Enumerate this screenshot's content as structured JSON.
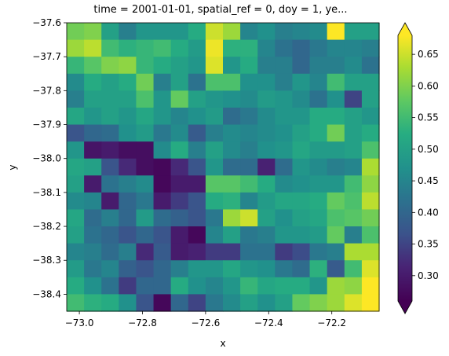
{
  "chart_data": {
    "type": "heatmap",
    "title": "time = 2001-01-01, spatial_ref = 0, doy = 1, ye...",
    "xlabel": "x",
    "ylabel": "y",
    "xlim": [
      -73.04,
      -72.05
    ],
    "ylim": [
      -38.45,
      -37.6
    ],
    "x_ticks": [
      -73.0,
      -72.8,
      -72.6,
      -72.4,
      -72.2
    ],
    "x_tick_labels": [
      "−73.0",
      "−72.8",
      "−72.6",
      "−72.4",
      "−72.2"
    ],
    "y_ticks": [
      -37.6,
      -37.7,
      -37.8,
      -37.9,
      -38.0,
      -38.1,
      -38.2,
      -38.3,
      -38.4
    ],
    "y_tick_labels": [
      "−37.6",
      "−37.7",
      "−37.8",
      "−37.9",
      "−38.0",
      "−38.1",
      "−38.2",
      "−38.3",
      "−38.4"
    ],
    "colormap": "viridis",
    "colorbar": {
      "vmin": 0.26,
      "vmax": 0.68,
      "extend": "both",
      "ticks": [
        0.3,
        0.35,
        0.4,
        0.45,
        0.5,
        0.55,
        0.6,
        0.65
      ],
      "tick_labels": [
        "0.30",
        "0.35",
        "0.40",
        "0.45",
        "0.50",
        "0.55",
        "0.60",
        "0.65"
      ]
    },
    "grid": false,
    "values": [
      [
        0.59,
        0.6,
        0.5,
        0.44,
        0.48,
        0.48,
        0.48,
        0.52,
        0.65,
        0.62,
        0.45,
        0.47,
        0.44,
        0.45,
        0.46,
        0.68,
        0.5,
        0.5
      ],
      [
        0.62,
        0.64,
        0.55,
        0.53,
        0.54,
        0.55,
        0.52,
        0.49,
        0.67,
        0.53,
        0.53,
        0.45,
        0.42,
        0.4,
        0.43,
        0.45,
        0.45,
        0.44
      ],
      [
        0.54,
        0.57,
        0.6,
        0.61,
        0.54,
        0.52,
        0.5,
        0.48,
        0.66,
        0.48,
        0.52,
        0.44,
        0.44,
        0.4,
        0.44,
        0.44,
        0.46,
        0.42
      ],
      [
        0.46,
        0.52,
        0.5,
        0.52,
        0.59,
        0.44,
        0.5,
        0.42,
        0.56,
        0.56,
        0.47,
        0.47,
        0.44,
        0.48,
        0.45,
        0.55,
        0.5,
        0.5
      ],
      [
        0.44,
        0.5,
        0.5,
        0.5,
        0.56,
        0.48,
        0.58,
        0.5,
        0.48,
        0.47,
        0.46,
        0.49,
        0.48,
        0.46,
        0.42,
        0.47,
        0.35,
        0.5
      ],
      [
        0.51,
        0.48,
        0.5,
        0.48,
        0.51,
        0.48,
        0.45,
        0.47,
        0.49,
        0.41,
        0.43,
        0.46,
        0.48,
        0.48,
        0.52,
        0.52,
        0.5,
        0.48
      ],
      [
        0.37,
        0.4,
        0.41,
        0.47,
        0.49,
        0.43,
        0.46,
        0.38,
        0.44,
        0.46,
        0.45,
        0.46,
        0.47,
        0.5,
        0.52,
        0.59,
        0.5,
        0.52
      ],
      [
        0.48,
        0.29,
        0.3,
        0.28,
        0.28,
        0.46,
        0.52,
        0.44,
        0.5,
        0.46,
        0.44,
        0.47,
        0.48,
        0.51,
        0.49,
        0.49,
        0.5,
        0.56
      ],
      [
        0.51,
        0.5,
        0.37,
        0.32,
        0.28,
        0.27,
        0.32,
        0.37,
        0.48,
        0.41,
        0.41,
        0.31,
        0.41,
        0.48,
        0.46,
        0.44,
        0.45,
        0.63
      ],
      [
        0.5,
        0.3,
        0.42,
        0.44,
        0.46,
        0.27,
        0.3,
        0.3,
        0.57,
        0.57,
        0.55,
        0.52,
        0.46,
        0.47,
        0.48,
        0.48,
        0.55,
        0.61
      ],
      [
        0.46,
        0.45,
        0.3,
        0.4,
        0.43,
        0.3,
        0.34,
        0.37,
        0.52,
        0.53,
        0.45,
        0.49,
        0.51,
        0.51,
        0.52,
        0.58,
        0.56,
        0.64
      ],
      [
        0.51,
        0.41,
        0.44,
        0.4,
        0.49,
        0.41,
        0.39,
        0.37,
        0.43,
        0.62,
        0.65,
        0.5,
        0.47,
        0.5,
        0.51,
        0.56,
        0.57,
        0.59
      ],
      [
        0.5,
        0.42,
        0.4,
        0.37,
        0.4,
        0.37,
        0.3,
        0.27,
        0.45,
        0.5,
        0.43,
        0.44,
        0.48,
        0.48,
        0.49,
        0.58,
        0.44,
        0.56
      ],
      [
        0.45,
        0.44,
        0.41,
        0.44,
        0.32,
        0.38,
        0.3,
        0.31,
        0.34,
        0.34,
        0.42,
        0.42,
        0.34,
        0.36,
        0.43,
        0.44,
        0.63,
        0.63
      ],
      [
        0.49,
        0.43,
        0.45,
        0.39,
        0.37,
        0.4,
        0.44,
        0.48,
        0.48,
        0.51,
        0.48,
        0.47,
        0.43,
        0.41,
        0.53,
        0.38,
        0.55,
        0.66
      ],
      [
        0.52,
        0.47,
        0.42,
        0.34,
        0.4,
        0.4,
        0.52,
        0.47,
        0.45,
        0.48,
        0.54,
        0.51,
        0.52,
        0.52,
        0.48,
        0.62,
        0.61,
        0.68
      ],
      [
        0.55,
        0.53,
        0.52,
        0.47,
        0.37,
        0.27,
        0.4,
        0.35,
        0.43,
        0.46,
        0.5,
        0.47,
        0.5,
        0.58,
        0.6,
        0.62,
        0.66,
        0.68
      ]
    ]
  }
}
